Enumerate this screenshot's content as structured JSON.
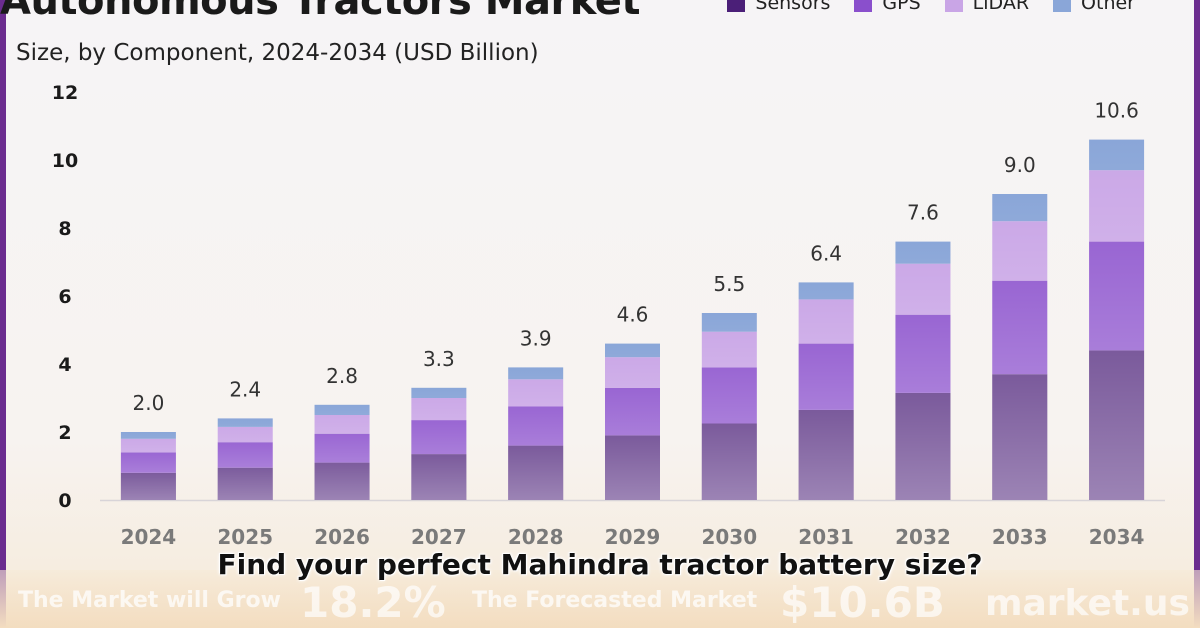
{
  "header": {
    "title": "Autonomous Tractors Market",
    "subtitle": "Size, by Component, 2024-2034 (USD Billion)"
  },
  "legend": [
    {
      "name": "Sensors",
      "color": "#4b1f78"
    },
    {
      "name": "GPS",
      "color": "#8a4fcc"
    },
    {
      "name": "LiDAR",
      "color": "#c9a5e6"
    },
    {
      "name": "Other",
      "color": "#8aa6d8"
    }
  ],
  "chart_data": {
    "type": "bar",
    "stacked": true,
    "categories": [
      "2024",
      "2025",
      "2026",
      "2027",
      "2028",
      "2029",
      "2030",
      "2031",
      "2032",
      "2033",
      "2034"
    ],
    "series": [
      {
        "name": "Sensors",
        "values": [
          0.8,
          0.95,
          1.1,
          1.35,
          1.6,
          1.9,
          2.25,
          2.65,
          3.15,
          3.7,
          4.4
        ],
        "color": "#4b1f78"
      },
      {
        "name": "GPS",
        "values": [
          0.6,
          0.75,
          0.85,
          1.0,
          1.15,
          1.4,
          1.65,
          1.95,
          2.3,
          2.75,
          3.2
        ],
        "color": "#8a4fcc"
      },
      {
        "name": "LiDAR",
        "values": [
          0.4,
          0.45,
          0.55,
          0.65,
          0.8,
          0.9,
          1.05,
          1.3,
          1.5,
          1.75,
          2.1
        ],
        "color": "#c9a5e6"
      },
      {
        "name": "Other",
        "values": [
          0.2,
          0.25,
          0.3,
          0.3,
          0.35,
          0.4,
          0.55,
          0.5,
          0.65,
          0.8,
          0.9
        ],
        "color": "#8aa6d8"
      }
    ],
    "totals": [
      "2.0",
      "2.4",
      "2.8",
      "3.3",
      "3.9",
      "4.6",
      "5.5",
      "6.4",
      "7.6",
      "9.0",
      "10.6"
    ],
    "ylim": [
      0,
      12
    ],
    "yticks": [
      "0",
      "2",
      "4",
      "6",
      "8",
      "10",
      "12"
    ],
    "ytick_values": [
      0,
      2,
      4,
      6,
      8,
      10,
      12
    ],
    "grid": false,
    "legend_position": "top-right"
  },
  "footer": {
    "caption": "Find your perfect Mahindra tractor battery size?",
    "text_left": "The Market will Grow",
    "cagr": "18.2%",
    "text_mid": "The Forecasted Market",
    "market_value": "$10.6B",
    "brand": "market.us"
  }
}
